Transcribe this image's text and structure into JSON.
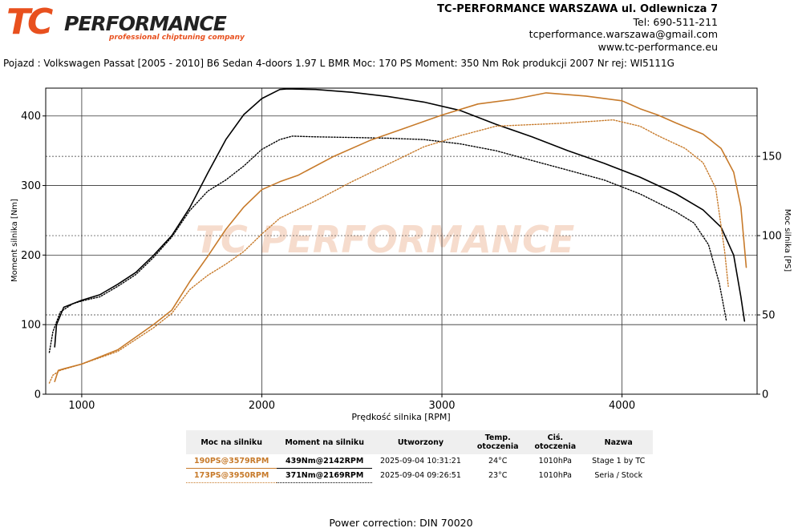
{
  "header": {
    "logo_text_tc": "TC",
    "logo_text_performance": "PERFORMANCE",
    "logo_subtitle": "professional chiptuning company",
    "contact": [
      "TC-PERFORMANCE WARSZAWA ul. Odlewnicza 7",
      "Tel: 690-511-211",
      "tcperformance.warszawa@gmail.com",
      "www.tc-performance.eu"
    ]
  },
  "vehicle_line": "Pojazd : Volkswagen Passat [2005 - 2010] B6 Sedan 4-doors 1.97 L BMR Moc: 170 PS Moment: 350 Nm Rok produkcji 2007 Nr rej: WI5111G",
  "colors": {
    "power": "#c77a2a",
    "torque": "#000000",
    "grid": "#333333"
  },
  "chart_data": {
    "type": "line",
    "xlabel": "Prędkość silnika [RPM]",
    "ylabel_left": "Moment silnika [Nm]",
    "ylabel_right": "Moc silnika [PS]",
    "xlim": [
      800,
      4750
    ],
    "ylim_left": [
      0,
      440
    ],
    "ylim_right": [
      0,
      193
    ],
    "xticks": [
      1000,
      2000,
      3000,
      4000
    ],
    "yticks_left": [
      0,
      100,
      200,
      300,
      400
    ],
    "yticks_right": [
      0,
      50,
      100,
      150
    ],
    "grid": true,
    "watermark": "TC PERFORMANCE",
    "series": [
      {
        "name": "Stage 1 by TC",
        "quantity": "torque",
        "axis": "left",
        "style": "solid",
        "points": [
          [
            850,
            68
          ],
          [
            860,
            100
          ],
          [
            900,
            125
          ],
          [
            1000,
            135
          ],
          [
            1100,
            143
          ],
          [
            1200,
            158
          ],
          [
            1300,
            175
          ],
          [
            1400,
            200
          ],
          [
            1500,
            228
          ],
          [
            1600,
            268
          ],
          [
            1700,
            318
          ],
          [
            1800,
            366
          ],
          [
            1900,
            402
          ],
          [
            2000,
            425
          ],
          [
            2100,
            438
          ],
          [
            2142,
            439
          ],
          [
            2300,
            438
          ],
          [
            2500,
            434
          ],
          [
            2700,
            428
          ],
          [
            2900,
            420
          ],
          [
            3100,
            408
          ],
          [
            3300,
            388
          ],
          [
            3500,
            370
          ],
          [
            3700,
            350
          ],
          [
            3900,
            332
          ],
          [
            4100,
            312
          ],
          [
            4300,
            288
          ],
          [
            4450,
            265
          ],
          [
            4550,
            240
          ],
          [
            4620,
            200
          ],
          [
            4660,
            140
          ],
          [
            4680,
            105
          ]
        ]
      },
      {
        "name": "Seria / Stock",
        "quantity": "torque",
        "axis": "left",
        "style": "dotted",
        "points": [
          [
            820,
            60
          ],
          [
            840,
            90
          ],
          [
            880,
            118
          ],
          [
            950,
            130
          ],
          [
            1000,
            134
          ],
          [
            1100,
            140
          ],
          [
            1200,
            155
          ],
          [
            1300,
            172
          ],
          [
            1400,
            197
          ],
          [
            1500,
            226
          ],
          [
            1600,
            264
          ],
          [
            1700,
            292
          ],
          [
            1800,
            308
          ],
          [
            1900,
            328
          ],
          [
            2000,
            352
          ],
          [
            2100,
            366
          ],
          [
            2169,
            371
          ],
          [
            2300,
            370
          ],
          [
            2500,
            369
          ],
          [
            2700,
            368
          ],
          [
            2900,
            366
          ],
          [
            3100,
            360
          ],
          [
            3300,
            350
          ],
          [
            3500,
            336
          ],
          [
            3700,
            322
          ],
          [
            3900,
            308
          ],
          [
            4100,
            288
          ],
          [
            4300,
            262
          ],
          [
            4400,
            246
          ],
          [
            4480,
            215
          ],
          [
            4540,
            160
          ],
          [
            4580,
            105
          ]
        ]
      },
      {
        "name": "Stage 1 by TC",
        "quantity": "power",
        "axis": "right",
        "style": "solid",
        "points": [
          [
            850,
            8
          ],
          [
            870,
            15
          ],
          [
            900,
            16
          ],
          [
            1000,
            19
          ],
          [
            1200,
            28
          ],
          [
            1400,
            44
          ],
          [
            1500,
            53
          ],
          [
            1600,
            71
          ],
          [
            1700,
            87
          ],
          [
            1800,
            104
          ],
          [
            1900,
            118
          ],
          [
            2000,
            129
          ],
          [
            2100,
            134
          ],
          [
            2200,
            138
          ],
          [
            2400,
            150
          ],
          [
            2600,
            160
          ],
          [
            2800,
            168
          ],
          [
            3000,
            176
          ],
          [
            3200,
            183
          ],
          [
            3400,
            186
          ],
          [
            3579,
            190
          ],
          [
            3800,
            188
          ],
          [
            4000,
            185
          ],
          [
            4100,
            180
          ],
          [
            4200,
            176
          ],
          [
            4300,
            171
          ],
          [
            4450,
            164
          ],
          [
            4550,
            155
          ],
          [
            4620,
            140
          ],
          [
            4660,
            118
          ],
          [
            4690,
            80
          ]
        ]
      },
      {
        "name": "Seria / Stock",
        "quantity": "power",
        "axis": "right",
        "style": "dotted",
        "points": [
          [
            820,
            7
          ],
          [
            840,
            12
          ],
          [
            880,
            15
          ],
          [
            1000,
            19
          ],
          [
            1200,
            27
          ],
          [
            1400,
            42
          ],
          [
            1500,
            51
          ],
          [
            1600,
            66
          ],
          [
            1700,
            75
          ],
          [
            1800,
            82
          ],
          [
            1900,
            90
          ],
          [
            2000,
            101
          ],
          [
            2100,
            111
          ],
          [
            2300,
            122
          ],
          [
            2500,
            134
          ],
          [
            2700,
            145
          ],
          [
            2900,
            156
          ],
          [
            3100,
            163
          ],
          [
            3300,
            169
          ],
          [
            3500,
            170
          ],
          [
            3700,
            171
          ],
          [
            3950,
            173
          ],
          [
            4100,
            169
          ],
          [
            4200,
            163
          ],
          [
            4350,
            155
          ],
          [
            4450,
            146
          ],
          [
            4520,
            130
          ],
          [
            4570,
            90
          ],
          [
            4590,
            68
          ]
        ]
      }
    ]
  },
  "legend": {
    "headers": [
      "Moc na silniku",
      "Moment na silniku",
      "Utworzony",
      "Temp. otoczenia",
      "Ciś. otoczenia",
      "Nazwa"
    ],
    "rows": [
      {
        "power": "190PS@3579RPM",
        "torque": "439Nm@2142RPM",
        "created": "2025-09-04 10:31:21",
        "temp": "24°C",
        "pressure": "1010hPa",
        "name": "Stage 1 by TC"
      },
      {
        "power": "173PS@3950RPM",
        "torque": "371Nm@2169RPM",
        "created": "2025-09-04 09:26:51",
        "temp": "23°C",
        "pressure": "1010hPa",
        "name": "Seria / Stock"
      }
    ]
  },
  "footer": {
    "correction": "Power correction: DIN 70020"
  }
}
